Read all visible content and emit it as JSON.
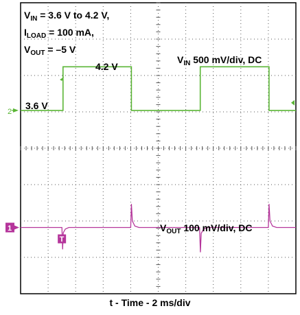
{
  "chart_data": {
    "type": "line",
    "xlabel": "t - Time - 2 ms/div",
    "grid": true,
    "conditions": {
      "vin": {
        "main": "V",
        "sub": "IN",
        "rest": " = 3.6 V to 4.2 V,"
      },
      "iload": {
        "main": "I",
        "sub": "LOAD",
        "rest": " = 100 mA,"
      },
      "vout": {
        "main": "V",
        "sub": "OUT",
        "rest": " = –5 V"
      }
    },
    "annotations": {
      "high_level": "4.2 V",
      "low_level": "3.6 V"
    },
    "x_divisions": 10,
    "y_divisions": 8,
    "series": [
      {
        "key": "vin",
        "label_main": "V",
        "label_sub": "IN",
        "label_rest": " 500 mV/div, DC",
        "color": "#5ab535",
        "channel_marker": "2",
        "ground_div": 2.96,
        "volts_per_div": 0.5,
        "unit": "V",
        "x_ms": [
          0,
          3.08,
          3.08,
          8.05,
          8.05,
          13.05,
          13.05,
          18.05,
          18.05,
          20
        ],
        "y_v": [
          3.6,
          3.6,
          4.2,
          4.2,
          3.6,
          3.6,
          4.2,
          4.2,
          3.6,
          3.6
        ]
      },
      {
        "key": "vout",
        "label_main": "V",
        "label_sub": "OUT",
        "label_rest": " 100 mV/div, DC",
        "color": "#b5359b",
        "channel_marker": "1",
        "ground_div": 6.18,
        "volts_per_div": 0.1,
        "unit": "mV (AC ripple)",
        "x_ms": [
          0,
          3.0,
          3.05,
          3.1,
          3.25,
          3.5,
          8.0,
          8.05,
          8.12,
          8.3,
          8.6,
          13.0,
          13.06,
          13.12,
          13.3,
          13.6,
          18.0,
          18.05,
          18.12,
          18.3,
          18.6,
          20
        ],
        "y_mv": [
          0,
          0,
          -60,
          -14,
          -4,
          0,
          0,
          65,
          18,
          4,
          0,
          0,
          -68,
          -16,
          -4,
          0,
          0,
          65,
          18,
          4,
          0,
          0
        ]
      }
    ],
    "trigger_marker": "T"
  },
  "colors": {
    "vin": "#5ab535",
    "vout": "#b5359b",
    "trigger": "#b5359b",
    "grid": "#555555"
  }
}
